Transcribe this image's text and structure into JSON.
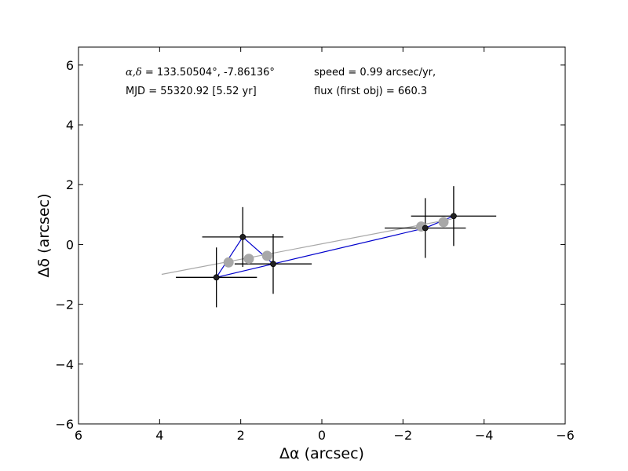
{
  "chart_data": {
    "type": "scatter",
    "xlabel": "Δα (arcsec)",
    "ylabel": "Δδ (arcsec)",
    "xlim": [
      6,
      -6
    ],
    "ylim": [
      -6,
      6.6
    ],
    "x_inverted": true,
    "grid": false,
    "xticks": [
      6,
      4,
      2,
      0,
      -2,
      -4,
      -6
    ],
    "xtick_labels": [
      "6",
      "4",
      "2",
      "0",
      "−2",
      "−4",
      "−6"
    ],
    "yticks": [
      6,
      4,
      2,
      0,
      -2,
      -4,
      -6
    ],
    "ytick_labels": [
      "6",
      "4",
      "2",
      "0",
      "−2",
      "−4",
      "−6"
    ],
    "annotations": {
      "coords_prefix": "α,δ",
      "coords": " = 133.50504°, -7.86136°",
      "mjd": "MJD = 55320.92 [5.52 yr]",
      "speed": "speed = 0.99 arcsec/yr,",
      "flux": "flux (first obj) = 660.3"
    },
    "fit_line": {
      "color": "#a8a8a8",
      "points": [
        [
          3.95,
          -1.0
        ],
        [
          -3.2,
          0.85
        ]
      ]
    },
    "observed": {
      "color": "#222222",
      "line_color": "#0000cc",
      "points": [
        {
          "x": 2.6,
          "y": -1.1,
          "xerr": 1.0,
          "yerr": 1.0
        },
        {
          "x": 1.95,
          "y": 0.25,
          "xerr": 1.0,
          "yerr": 1.0
        },
        {
          "x": 1.2,
          "y": -0.65,
          "xerr": 0.95,
          "yerr": 1.0
        },
        {
          "x": -2.55,
          "y": 0.55,
          "xerr": 1.0,
          "yerr": 1.0
        },
        {
          "x": -3.25,
          "y": 0.95,
          "xerr": 1.05,
          "yerr": 1.0
        }
      ]
    },
    "model": {
      "color": "#a8a8a8",
      "points": [
        {
          "x": 2.3,
          "y": -0.6
        },
        {
          "x": 1.8,
          "y": -0.48
        },
        {
          "x": 1.35,
          "y": -0.38
        },
        {
          "x": -2.45,
          "y": 0.6
        },
        {
          "x": -3.0,
          "y": 0.75
        }
      ]
    }
  }
}
